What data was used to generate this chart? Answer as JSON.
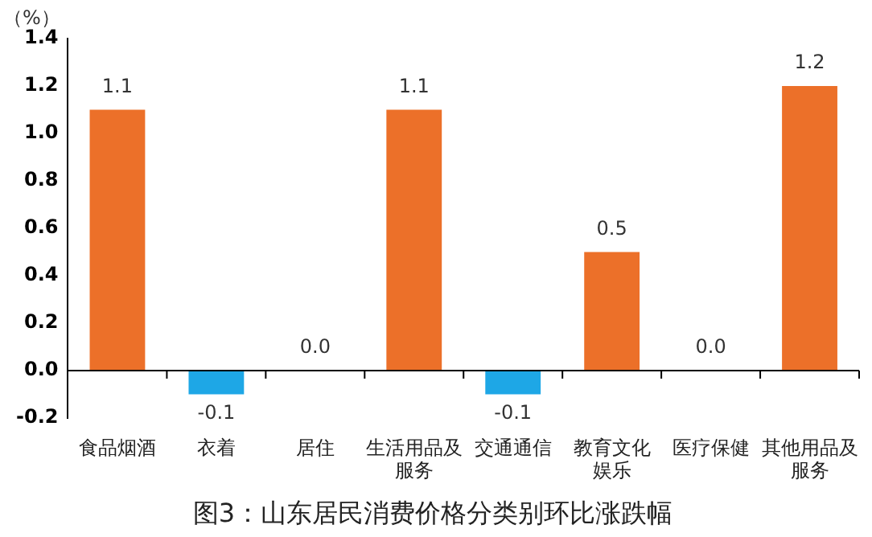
{
  "chart_data": {
    "type": "bar",
    "title": "图3：山东居民消费价格分类别环比涨跌幅",
    "ylabel": "（%）",
    "categories": [
      "食品烟酒",
      "衣着",
      "居住",
      "生活用品及服务",
      "交通通信",
      "教育文化娱乐",
      "医疗保健",
      "其他用品及服务"
    ],
    "values": [
      1.1,
      -0.1,
      0.0,
      1.1,
      -0.1,
      0.5,
      0.0,
      1.2
    ],
    "colors": [
      "#ec7029",
      "#1ea7e6",
      "#ec7029",
      "#ec7029",
      "#1ea7e6",
      "#ec7029",
      "#ec7029",
      "#ec7029"
    ],
    "value_labels": [
      "1.1",
      "-0.1",
      "0.0",
      "1.1",
      "-0.1",
      "0.5",
      "0.0",
      "1.2"
    ],
    "ylim": [
      -0.2,
      1.4
    ],
    "yticks": [
      {
        "value": -0.2,
        "label": "-0.2"
      },
      {
        "value": 0,
        "label": "0.0"
      },
      {
        "value": 0.2,
        "label": "0.2"
      },
      {
        "value": 0.4,
        "label": "0.4"
      },
      {
        "value": 0.6,
        "label": "0.6"
      },
      {
        "value": 0.8,
        "label": "0.8"
      },
      {
        "value": 1,
        "label": "1.0"
      },
      {
        "value": 1.2,
        "label": "1.2"
      },
      {
        "value": 1.4,
        "label": "1.4"
      }
    ],
    "legend": false
  }
}
